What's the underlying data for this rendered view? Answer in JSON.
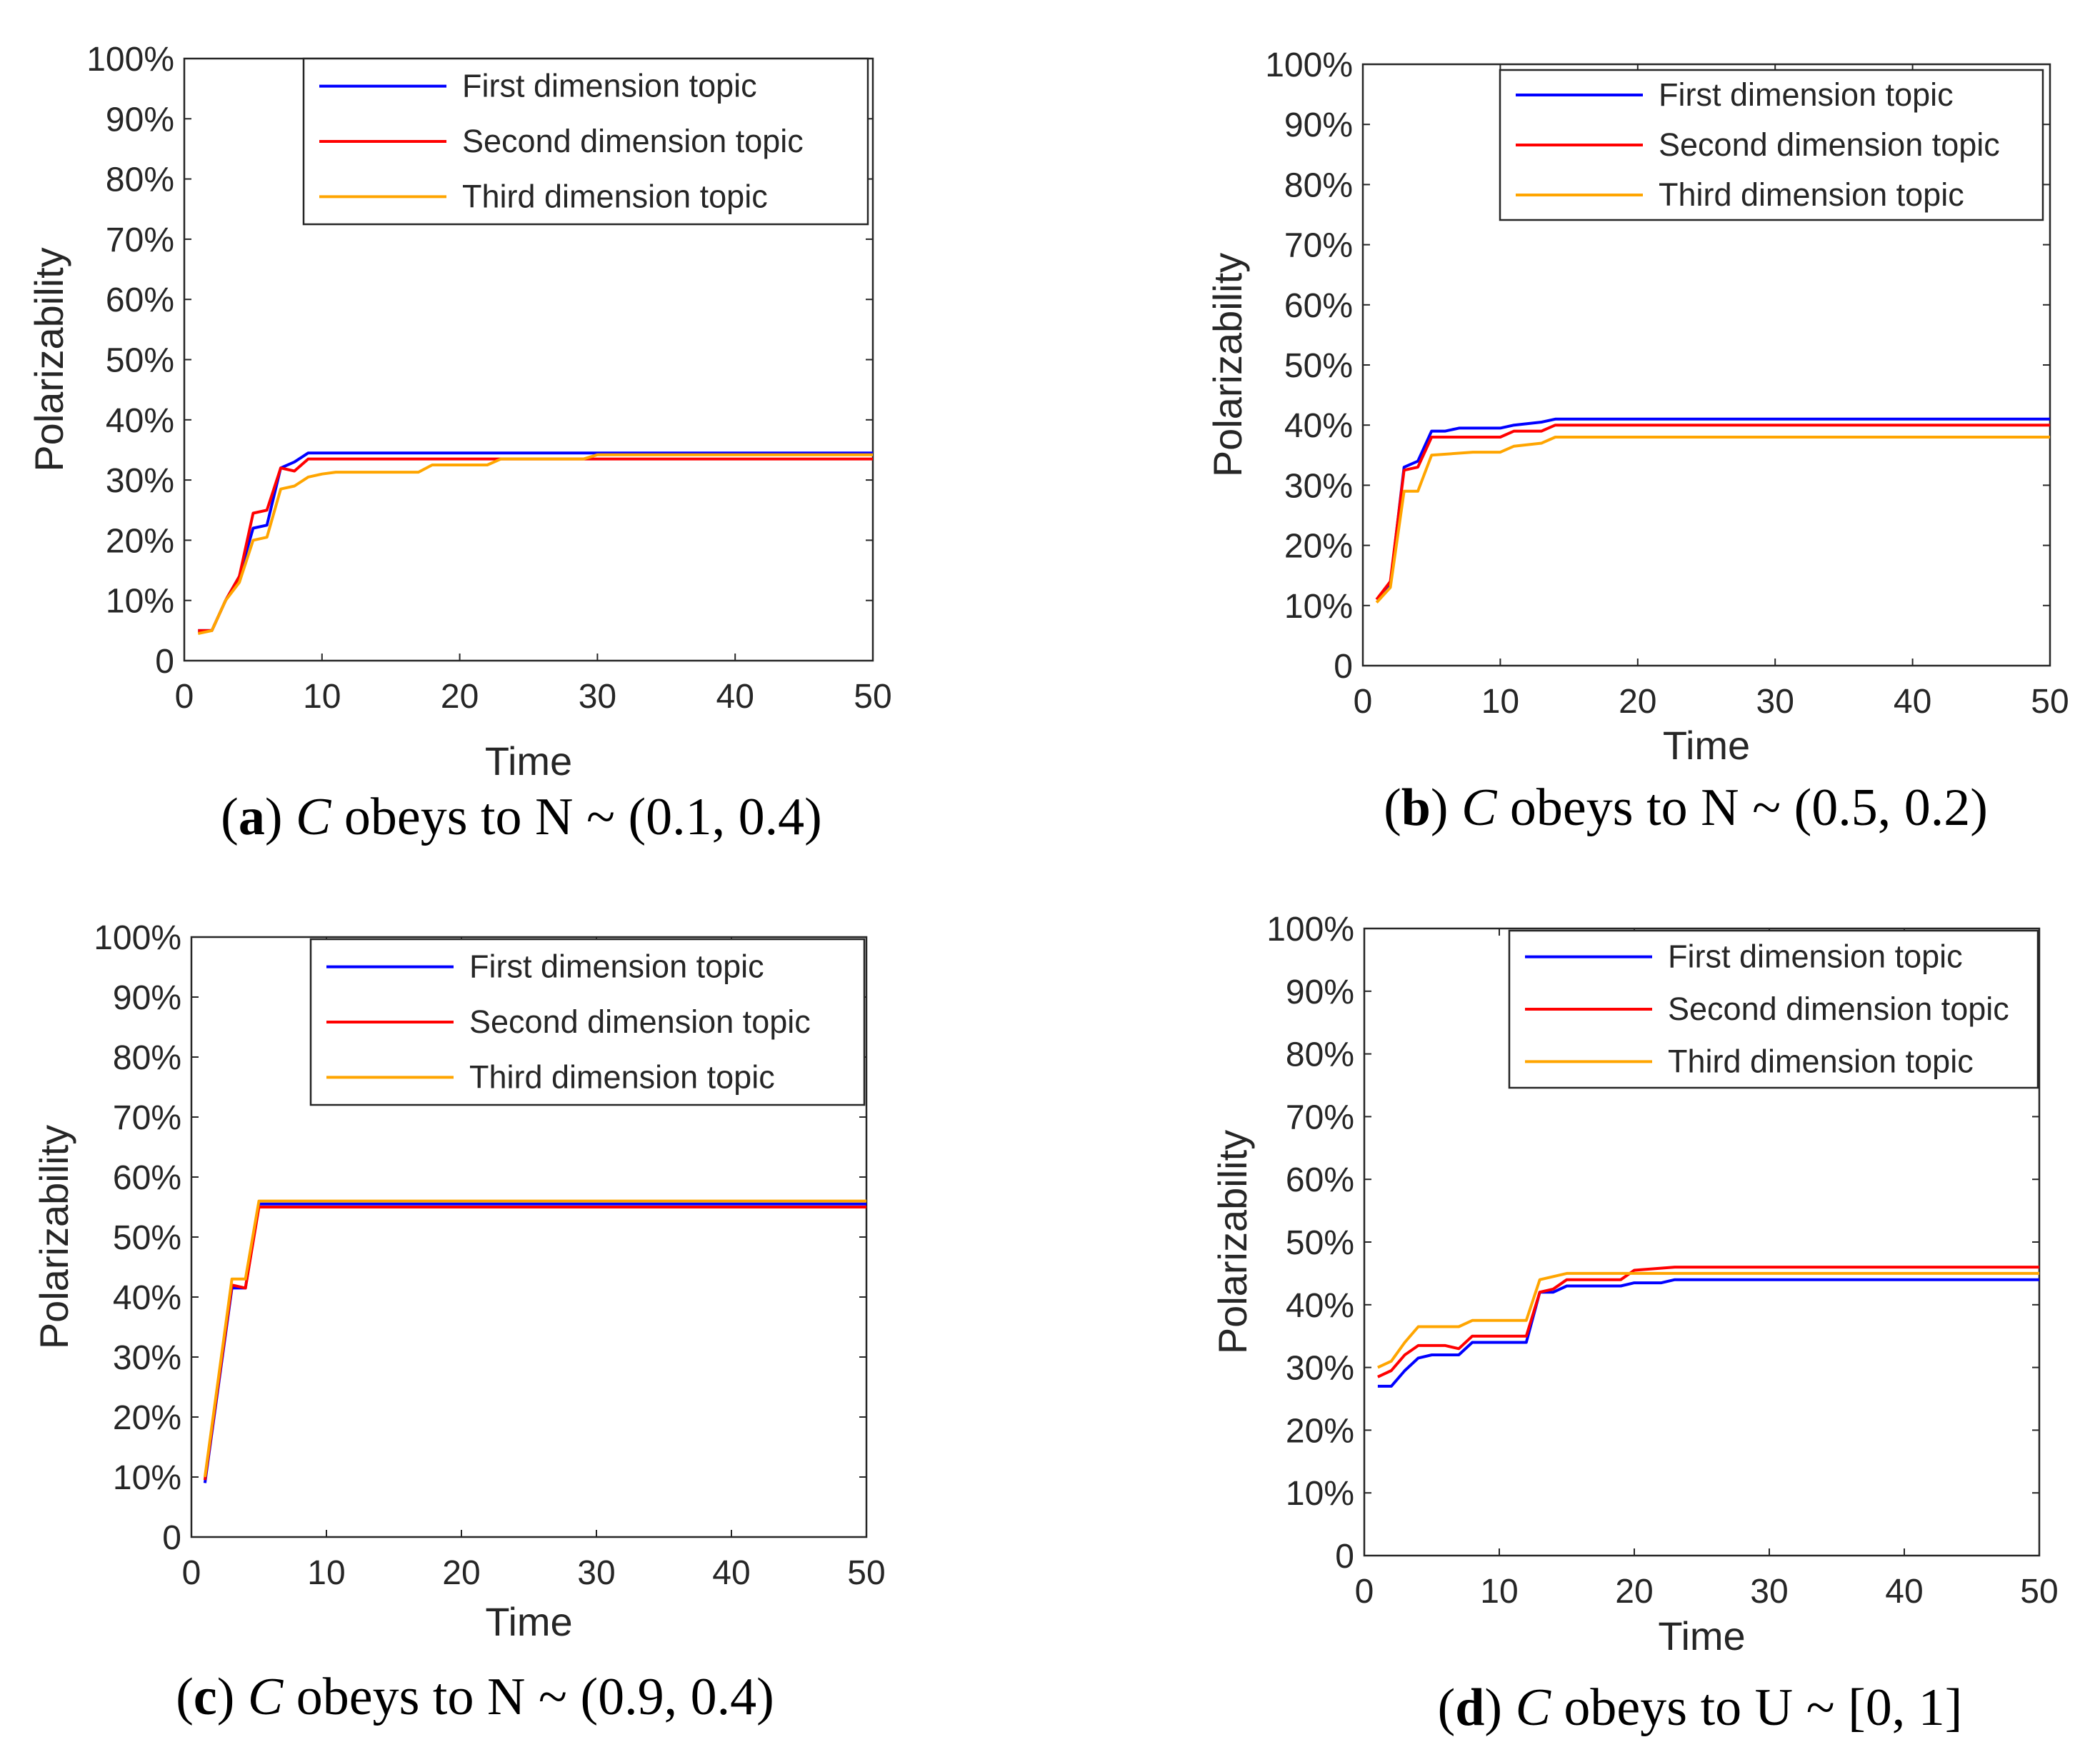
{
  "chart_data": [
    {
      "type": "line",
      "panel_label": "a",
      "caption_var": "C",
      "caption_rest": " obeys to N ~ (0.1, 0.4)",
      "xlabel": "Time",
      "ylabel": "Polarizability",
      "xlim": [
        0,
        50
      ],
      "ylim": [
        0,
        100
      ],
      "xticks": [
        0,
        10,
        20,
        30,
        40,
        50
      ],
      "xtick_labels": [
        "0",
        "10",
        "20",
        "30",
        "40",
        "50"
      ],
      "yticks": [
        0,
        10,
        20,
        30,
        40,
        50,
        60,
        70,
        80,
        90,
        100
      ],
      "ytick_labels": [
        "0",
        "10%",
        "20%",
        "30%",
        "40%",
        "50%",
        "60%",
        "70%",
        "80%",
        "90%",
        "100%"
      ],
      "legend_position": "top-right",
      "series": [
        {
          "name": "First dimension topic",
          "color": "#0000ff",
          "points": [
            [
              1,
              5
            ],
            [
              2,
              5
            ],
            [
              3,
              10
            ],
            [
              4,
              14
            ],
            [
              5,
              22
            ],
            [
              6,
              22.5
            ],
            [
              7,
              32
            ],
            [
              8,
              33
            ],
            [
              9,
              34.5
            ],
            [
              20,
              34.5
            ],
            [
              30,
              34.5
            ],
            [
              50,
              34.5
            ]
          ]
        },
        {
          "name": "Second dimension topic",
          "color": "#ff0000",
          "points": [
            [
              1,
              5
            ],
            [
              2,
              5
            ],
            [
              3,
              10
            ],
            [
              4,
              14
            ],
            [
              5,
              24.5
            ],
            [
              6,
              25
            ],
            [
              7,
              32
            ],
            [
              8,
              31.5
            ],
            [
              9,
              33.5
            ],
            [
              20,
              33.5
            ],
            [
              30,
              33.5
            ],
            [
              50,
              33.5
            ]
          ]
        },
        {
          "name": "Third dimension topic",
          "color": "#ffa500",
          "points": [
            [
              1,
              4.5
            ],
            [
              2,
              5
            ],
            [
              3,
              10
            ],
            [
              4,
              13
            ],
            [
              5,
              20
            ],
            [
              6,
              20.5
            ],
            [
              7,
              28.5
            ],
            [
              8,
              29
            ],
            [
              9,
              30.5
            ],
            [
              10,
              31
            ],
            [
              11,
              31.3
            ],
            [
              17,
              31.3
            ],
            [
              18,
              32.5
            ],
            [
              22,
              32.5
            ],
            [
              23,
              33.5
            ],
            [
              29,
              33.5
            ],
            [
              30,
              34.2
            ],
            [
              50,
              34.2
            ]
          ]
        }
      ]
    },
    {
      "type": "line",
      "panel_label": "b",
      "caption_var": "C",
      "caption_rest": " obeys to N ~ (0.5, 0.2)",
      "xlabel": "Time",
      "ylabel": "Polarizability",
      "xlim": [
        0,
        50
      ],
      "ylim": [
        0,
        100
      ],
      "xticks": [
        0,
        10,
        20,
        30,
        40,
        50
      ],
      "xtick_labels": [
        "0",
        "10",
        "20",
        "30",
        "40",
        "50"
      ],
      "yticks": [
        0,
        10,
        20,
        30,
        40,
        50,
        60,
        70,
        80,
        90,
        100
      ],
      "ytick_labels": [
        "0",
        "10%",
        "20%",
        "30%",
        "40%",
        "50%",
        "60%",
        "70%",
        "80%",
        "90%",
        "100%"
      ],
      "legend_position": "top-right",
      "series": [
        {
          "name": "First dimension topic",
          "color": "#0000ff",
          "points": [
            [
              1,
              11
            ],
            [
              2,
              13.5
            ],
            [
              3,
              33
            ],
            [
              4,
              34
            ],
            [
              5,
              39
            ],
            [
              6,
              39
            ],
            [
              7,
              39.5
            ],
            [
              10,
              39.5
            ],
            [
              11,
              40
            ],
            [
              13,
              40.5
            ],
            [
              14,
              41
            ],
            [
              50,
              41
            ]
          ]
        },
        {
          "name": "Second dimension topic",
          "color": "#ff0000",
          "points": [
            [
              1,
              11
            ],
            [
              2,
              14
            ],
            [
              3,
              32.5
            ],
            [
              4,
              33
            ],
            [
              5,
              38
            ],
            [
              10,
              38
            ],
            [
              11,
              39
            ],
            [
              13,
              39
            ],
            [
              14,
              40
            ],
            [
              50,
              40
            ]
          ]
        },
        {
          "name": "Third dimension topic",
          "color": "#ffa500",
          "points": [
            [
              1,
              10.5
            ],
            [
              2,
              13
            ],
            [
              3,
              29
            ],
            [
              4,
              29
            ],
            [
              5,
              35
            ],
            [
              8,
              35.5
            ],
            [
              10,
              35.5
            ],
            [
              11,
              36.5
            ],
            [
              13,
              37
            ],
            [
              14,
              38
            ],
            [
              50,
              38
            ]
          ]
        }
      ]
    },
    {
      "type": "line",
      "panel_label": "c",
      "caption_var": "C",
      "caption_rest": " obeys to N ~ (0.9, 0.4)",
      "xlabel": "Time",
      "ylabel": "Polarizability",
      "xlim": [
        0,
        50
      ],
      "ylim": [
        0,
        100
      ],
      "xticks": [
        0,
        10,
        20,
        30,
        40,
        50
      ],
      "xtick_labels": [
        "0",
        "10",
        "20",
        "30",
        "40",
        "50"
      ],
      "yticks": [
        0,
        10,
        20,
        30,
        40,
        50,
        60,
        70,
        80,
        90,
        100
      ],
      "ytick_labels": [
        "0",
        "10%",
        "20%",
        "30%",
        "40%",
        "50%",
        "60%",
        "70%",
        "80%",
        "90%",
        "100%"
      ],
      "legend_position": "top-right",
      "series": [
        {
          "name": "First dimension topic",
          "color": "#0000ff",
          "points": [
            [
              1,
              9
            ],
            [
              3,
              41.5
            ],
            [
              4,
              41.5
            ],
            [
              5,
              55.5
            ],
            [
              50,
              55.5
            ]
          ]
        },
        {
          "name": "Second dimension topic",
          "color": "#ff0000",
          "points": [
            [
              1,
              9.5
            ],
            [
              3,
              42
            ],
            [
              4,
              41.5
            ],
            [
              5,
              55
            ],
            [
              50,
              55
            ]
          ]
        },
        {
          "name": "Third dimension topic",
          "color": "#ffa500",
          "points": [
            [
              1,
              10
            ],
            [
              3,
              43
            ],
            [
              4,
              43
            ],
            [
              5,
              56
            ],
            [
              50,
              56
            ]
          ]
        }
      ]
    },
    {
      "type": "line",
      "panel_label": "d",
      "caption_var": "C",
      "caption_rest": " obeys to U ~ [0, 1]",
      "xlabel": "Time",
      "ylabel": "Polarizability",
      "xlim": [
        0,
        50
      ],
      "ylim": [
        0,
        100
      ],
      "xticks": [
        0,
        10,
        20,
        30,
        40,
        50
      ],
      "xtick_labels": [
        "0",
        "10",
        "20",
        "30",
        "40",
        "50"
      ],
      "yticks": [
        0,
        10,
        20,
        30,
        40,
        50,
        60,
        70,
        80,
        90,
        100
      ],
      "ytick_labels": [
        "0",
        "10%",
        "20%",
        "30%",
        "40%",
        "50%",
        "60%",
        "70%",
        "80%",
        "90%",
        "100%"
      ],
      "legend_position": "top-right",
      "series": [
        {
          "name": "First dimension topic",
          "color": "#0000ff",
          "points": [
            [
              1,
              27
            ],
            [
              2,
              27
            ],
            [
              3,
              29.5
            ],
            [
              4,
              31.5
            ],
            [
              5,
              32
            ],
            [
              7,
              32
            ],
            [
              8,
              34
            ],
            [
              12,
              34
            ],
            [
              13,
              42
            ],
            [
              14,
              42
            ],
            [
              15,
              43
            ],
            [
              19,
              43
            ],
            [
              20,
              43.5
            ],
            [
              22,
              43.5
            ],
            [
              23,
              44
            ],
            [
              50,
              44
            ]
          ]
        },
        {
          "name": "Second dimension topic",
          "color": "#ff0000",
          "points": [
            [
              1,
              28.5
            ],
            [
              2,
              29.5
            ],
            [
              3,
              32
            ],
            [
              4,
              33.5
            ],
            [
              6,
              33.5
            ],
            [
              7,
              33
            ],
            [
              8,
              35
            ],
            [
              12,
              35
            ],
            [
              13,
              42
            ],
            [
              14,
              42.5
            ],
            [
              15,
              44
            ],
            [
              19,
              44
            ],
            [
              20,
              45.5
            ],
            [
              23,
              46
            ],
            [
              50,
              46
            ]
          ]
        },
        {
          "name": "Third dimension topic",
          "color": "#ffa500",
          "points": [
            [
              1,
              30
            ],
            [
              2,
              31
            ],
            [
              3,
              34
            ],
            [
              4,
              36.5
            ],
            [
              7,
              36.5
            ],
            [
              8,
              37.5
            ],
            [
              12,
              37.5
            ],
            [
              13,
              44
            ],
            [
              15,
              45
            ],
            [
              19,
              45
            ],
            [
              20,
              45
            ],
            [
              50,
              45
            ]
          ]
        }
      ]
    }
  ]
}
